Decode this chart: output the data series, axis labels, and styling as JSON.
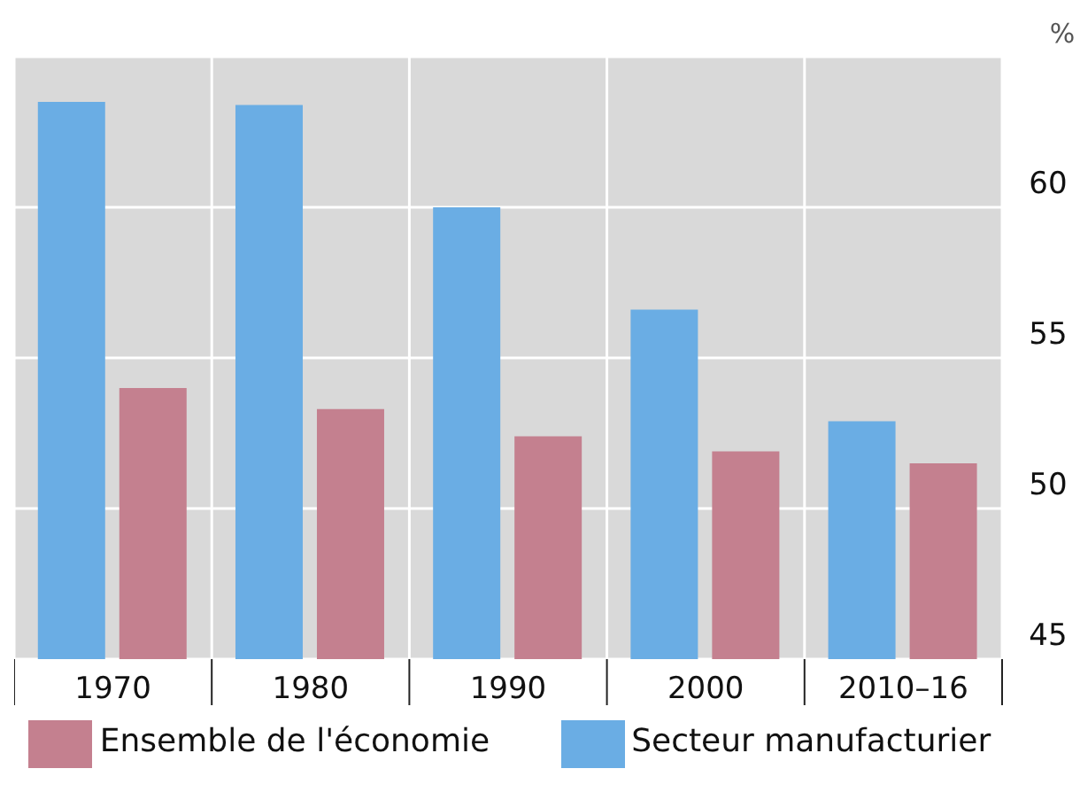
{
  "chart_data": {
    "type": "bar",
    "ylabel": "%",
    "categories": [
      "1970",
      "1980",
      "1990",
      "2000",
      "2010–16"
    ],
    "series": [
      {
        "name": "Secteur manufacturier",
        "color": "#6aade4",
        "values": [
          63.5,
          63.4,
          60.0,
          56.6,
          52.9
        ]
      },
      {
        "name": "Ensemble de l'économie",
        "color": "#c4808f",
        "values": [
          54.0,
          53.3,
          52.4,
          51.9,
          51.5
        ]
      }
    ],
    "ylim": [
      45,
      65
    ],
    "yticks": [
      45,
      50,
      55,
      60,
      {
        "value": 65,
        "label": null
      }
    ],
    "grid": true,
    "legend": "bottom"
  }
}
